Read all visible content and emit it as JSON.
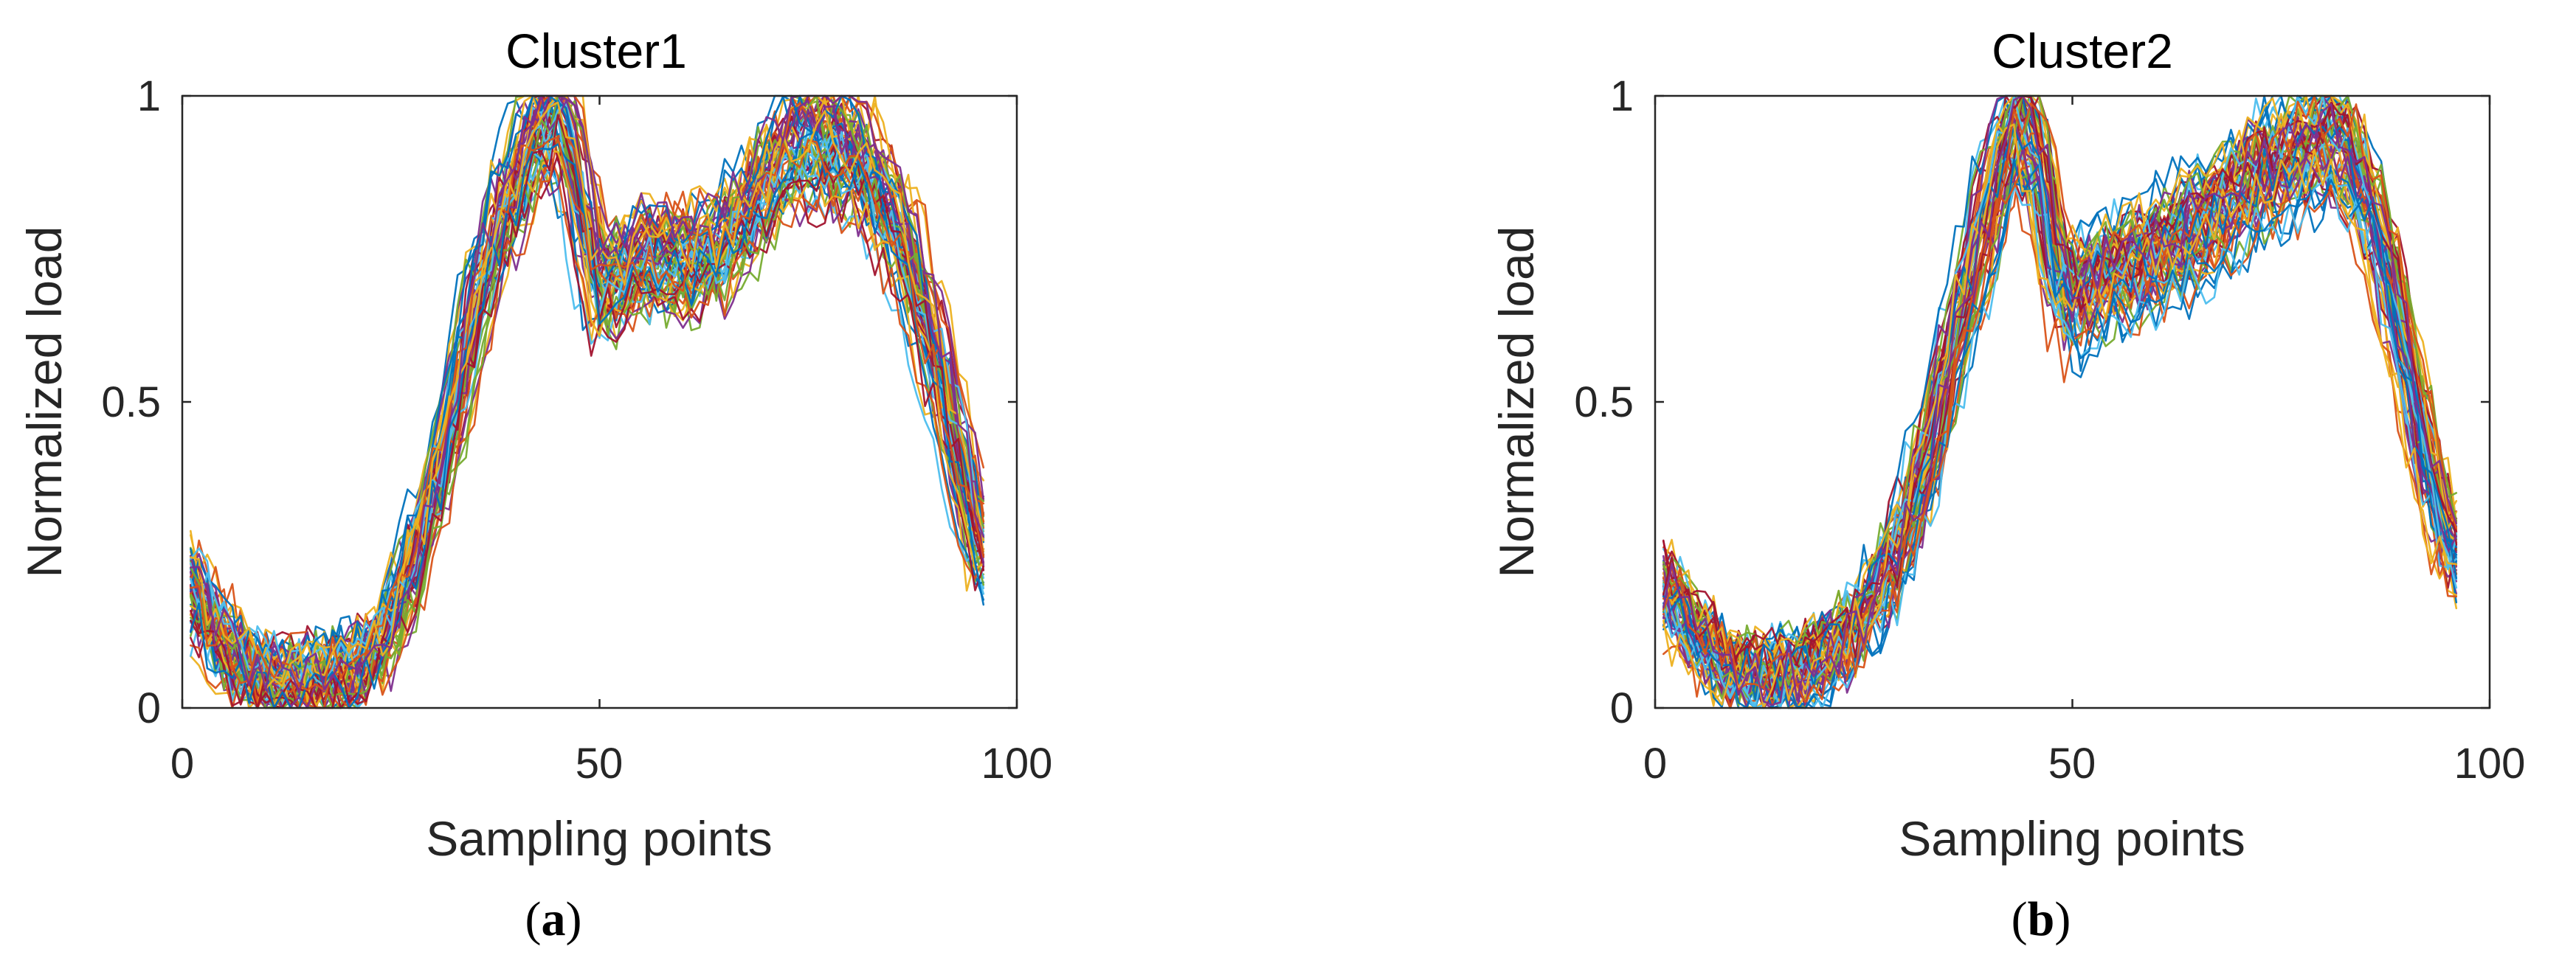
{
  "chart_data": [
    {
      "type": "line",
      "title": "Cluster1",
      "xlabel": "Sampling points",
      "ylabel": "Normalized load",
      "xlim": [
        0,
        100
      ],
      "ylim": [
        0,
        1
      ],
      "xticks": [
        "0",
        "50",
        "100"
      ],
      "yticks": [
        "0",
        "0.5",
        "1"
      ],
      "caption": {
        "open": "(",
        "letter": "a",
        "close": ")"
      },
      "grid": false,
      "legend": "none",
      "x_points": 96,
      "series_count": 60,
      "series_colors": [
        "#0072BD",
        "#D95319",
        "#EDB120",
        "#7E2F8E",
        "#77AC30",
        "#4DBEEE",
        "#A2142F"
      ],
      "profile": {
        "x": [
          1,
          4,
          8,
          12,
          16,
          20,
          24,
          28,
          32,
          35,
          38,
          41,
          44,
          45,
          47,
          50,
          53,
          56,
          60,
          64,
          68,
          72,
          75,
          78,
          82,
          86,
          89,
          92,
          94,
          96
        ],
        "y": [
          0.2,
          0.12,
          0.06,
          0.04,
          0.05,
          0.06,
          0.1,
          0.25,
          0.45,
          0.65,
          0.8,
          0.9,
          0.98,
          0.99,
          0.88,
          0.68,
          0.72,
          0.74,
          0.73,
          0.75,
          0.82,
          0.9,
          0.93,
          0.92,
          0.88,
          0.78,
          0.65,
          0.48,
          0.35,
          0.25
        ]
      }
    },
    {
      "type": "line",
      "title": "Cluster2",
      "xlabel": "Sampling points",
      "ylabel": "Normalized load",
      "xlim": [
        0,
        100
      ],
      "ylim": [
        0,
        1
      ],
      "xticks": [
        "0",
        "50",
        "100"
      ],
      "yticks": [
        "0",
        "0.5",
        "1"
      ],
      "caption": {
        "open": "(",
        "letter": "b",
        "close": ")"
      },
      "grid": false,
      "legend": "none",
      "x_points": 96,
      "series_count": 60,
      "series_colors": [
        "#0072BD",
        "#D95319",
        "#EDB120",
        "#7E2F8E",
        "#77AC30",
        "#4DBEEE",
        "#A2142F"
      ],
      "profile": {
        "x": [
          1,
          4,
          8,
          12,
          16,
          20,
          24,
          28,
          32,
          36,
          40,
          43,
          44,
          46,
          48,
          50,
          53,
          56,
          60,
          64,
          68,
          72,
          76,
          80,
          82,
          85,
          88,
          91,
          94,
          96
        ],
        "y": [
          0.2,
          0.13,
          0.07,
          0.05,
          0.06,
          0.08,
          0.13,
          0.22,
          0.38,
          0.62,
          0.82,
          0.95,
          0.97,
          0.88,
          0.72,
          0.66,
          0.7,
          0.72,
          0.75,
          0.78,
          0.82,
          0.87,
          0.9,
          0.93,
          0.92,
          0.85,
          0.7,
          0.5,
          0.32,
          0.24
        ]
      }
    }
  ]
}
